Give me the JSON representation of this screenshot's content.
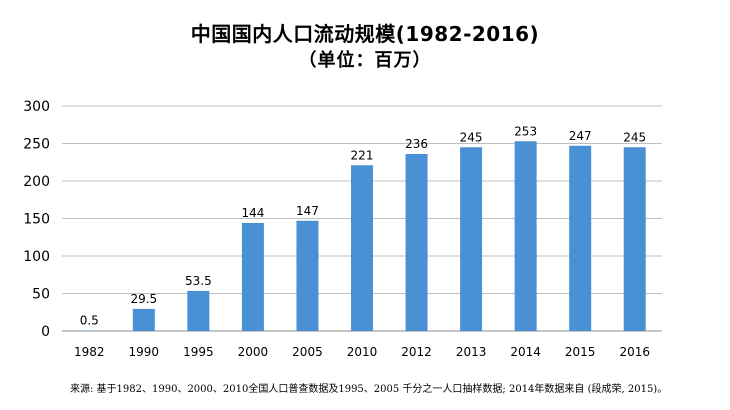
{
  "chart_data": {
    "type": "bar",
    "title": "中国国内人口流动规模(1982-2016)",
    "subtitle": "（单位：百万）",
    "categories": [
      "1982",
      "1990",
      "1995",
      "2000",
      "2005",
      "2010",
      "2012",
      "2013",
      "2014",
      "2015",
      "2016"
    ],
    "values": [
      0.5,
      29.5,
      53.5,
      144,
      147,
      221,
      236,
      245,
      253,
      247,
      245
    ],
    "value_labels": [
      "0.5",
      "29.5",
      "53.5",
      "144",
      "147",
      "221",
      "236",
      "245",
      "253",
      "247",
      "245"
    ],
    "ylim": [
      0,
      300
    ],
    "yticks": [
      0,
      50,
      100,
      150,
      200,
      250,
      300
    ],
    "grid": true,
    "legend": "none",
    "xlabel": "",
    "ylabel": ""
  },
  "colors": {
    "bar": "#4a90d4",
    "grid": "#bfbfbf",
    "axis": "#8c8c8c"
  },
  "footnote": "来源: 基于1982、1990、2000、2010全国人口普查数据及1995、2005 千分之一人口抽样数据; 2014年数据来自 (段成荣, 2015)。"
}
